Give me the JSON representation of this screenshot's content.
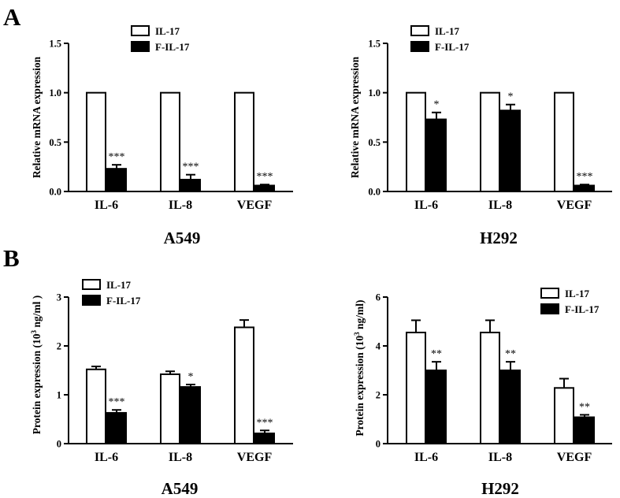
{
  "panel_letters": [
    "A",
    "B"
  ],
  "chart_data": [
    {
      "type": "bar",
      "title": "A549",
      "ylabel": "Relative mRNA expression",
      "ylim": [
        0,
        1.5
      ],
      "yticks": [
        "0.0",
        "0.5",
        "1.0",
        "1.5"
      ],
      "categories": [
        "IL-6",
        "IL-8",
        "VEGF"
      ],
      "series": [
        {
          "name": "IL-17",
          "values": [
            1.0,
            1.0,
            1.0
          ],
          "errors": [
            0,
            0,
            0
          ],
          "color": "#ffffff"
        },
        {
          "name": "F-IL-17",
          "values": [
            0.23,
            0.12,
            0.06
          ],
          "errors": [
            0.04,
            0.05,
            0.01
          ],
          "color": "#000000"
        }
      ],
      "annotations": [
        "***",
        "***",
        "***"
      ],
      "legend_position": "top-left"
    },
    {
      "type": "bar",
      "title": "H292",
      "ylabel": "Relative mRNA expression",
      "ylim": [
        0,
        1.5
      ],
      "yticks": [
        "0.0",
        "0.5",
        "1.0",
        "1.5"
      ],
      "categories": [
        "IL-6",
        "IL-8",
        "VEGF"
      ],
      "series": [
        {
          "name": "IL-17",
          "values": [
            1.0,
            1.0,
            1.0
          ],
          "errors": [
            0,
            0,
            0
          ],
          "color": "#ffffff"
        },
        {
          "name": "F-IL-17",
          "values": [
            0.73,
            0.82,
            0.06
          ],
          "errors": [
            0.07,
            0.06,
            0.01
          ],
          "color": "#000000"
        }
      ],
      "annotations": [
        "*",
        "*",
        "***"
      ],
      "legend_position": "top-left"
    },
    {
      "type": "bar",
      "title": "A549",
      "ylabel_main": "Protein expression (10",
      "ylabel_sup": "3",
      "ylabel_tail": " ng/ml )",
      "ylim": [
        0,
        3
      ],
      "yticks": [
        "0",
        "1",
        "2",
        "3"
      ],
      "categories": [
        "IL-6",
        "IL-8",
        "VEGF"
      ],
      "series": [
        {
          "name": "IL-17",
          "values": [
            1.52,
            1.42,
            2.38
          ],
          "errors": [
            0.06,
            0.06,
            0.15
          ],
          "color": "#ffffff"
        },
        {
          "name": "F-IL-17",
          "values": [
            0.63,
            1.16,
            0.21
          ],
          "errors": [
            0.06,
            0.05,
            0.06
          ],
          "color": "#000000"
        }
      ],
      "annotations": [
        "***",
        "*",
        "***"
      ],
      "legend_position": "top-left"
    },
    {
      "type": "bar",
      "title": "H292",
      "ylabel_main": "Protein expression (10",
      "ylabel_sup": "3",
      "ylabel_tail": " ng/ml)",
      "ylim": [
        0,
        6
      ],
      "yticks": [
        "0",
        "2",
        "4",
        "6"
      ],
      "categories": [
        "IL-6",
        "IL-8",
        "VEGF"
      ],
      "series": [
        {
          "name": "IL-17",
          "values": [
            4.55,
            4.55,
            2.28
          ],
          "errors": [
            0.5,
            0.5,
            0.38
          ],
          "color": "#ffffff"
        },
        {
          "name": "F-IL-17",
          "values": [
            3.0,
            3.0,
            1.08
          ],
          "errors": [
            0.35,
            0.35,
            0.1
          ],
          "color": "#000000"
        }
      ],
      "annotations": [
        "**",
        "**",
        "**"
      ],
      "legend_position": "top-right"
    }
  ]
}
